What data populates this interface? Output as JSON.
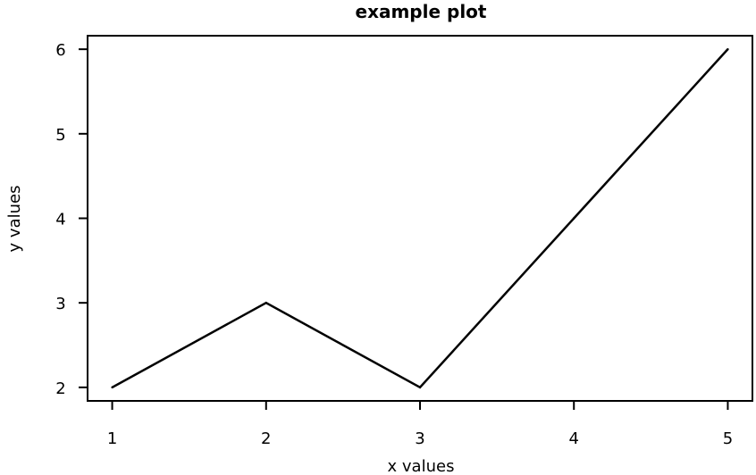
{
  "chart_data": {
    "type": "line",
    "title": "example plot",
    "xlabel": "x values",
    "ylabel": "y values",
    "x": [
      1,
      2,
      3,
      4,
      5
    ],
    "series": [
      {
        "values": [
          2,
          3,
          2,
          4,
          6
        ]
      }
    ],
    "xlim": [
      0.84,
      5.16
    ],
    "ylim": [
      1.84,
      6.16
    ],
    "xticks": [
      "1",
      "2",
      "3",
      "4",
      "5"
    ],
    "yticks": [
      "2",
      "3",
      "4",
      "5",
      "6"
    ],
    "line_color": "#000000",
    "grid": false,
    "legend": "none"
  }
}
